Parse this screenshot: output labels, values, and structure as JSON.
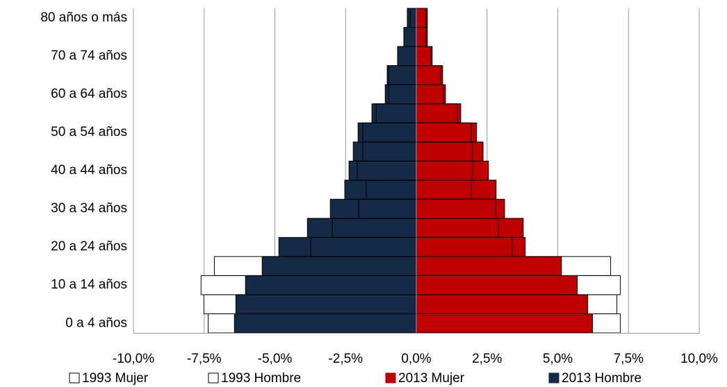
{
  "chart_data": {
    "type": "population-pyramid",
    "categories": [
      "0 a 4 años",
      null,
      "10 a 14 años",
      null,
      "20 a 24 años",
      null,
      "30 a 34 años",
      null,
      "40 a 44 años",
      null,
      "50 a 54 años",
      null,
      "60 a 64 años",
      null,
      "70 a 74 años",
      null,
      "80 años o más"
    ],
    "series": [
      {
        "name": "1993 Mujer",
        "color": "#ffffff",
        "values": [
          7.21,
          7.09,
          7.21,
          6.87,
          3.39,
          2.9,
          2.8,
          1.94,
          1.99,
          1.99,
          1.94,
          1.45,
          0.96,
          0.86,
          0.52,
          0.34,
          0.34
        ]
      },
      {
        "name": "1993 Hombre",
        "color": "#ffffff",
        "values": [
          -7.36,
          -7.51,
          -7.61,
          -7.14,
          -3.73,
          -2.97,
          -2.04,
          -1.77,
          -2.09,
          -1.89,
          -1.89,
          -1.42,
          -0.98,
          -0.98,
          -0.66,
          -0.44,
          -0.22
        ]
      },
      {
        "name": "2013 Mujer",
        "color": "#c00000",
        "values": [
          6.23,
          6.06,
          5.69,
          5.13,
          3.85,
          3.78,
          3.12,
          2.82,
          2.55,
          2.36,
          2.13,
          1.57,
          1.03,
          0.93,
          0.56,
          0.39,
          0.39
        ]
      },
      {
        "name": "2013 Hombre",
        "color": "#152a47",
        "values": [
          -6.43,
          -6.38,
          -6.04,
          -5.45,
          -4.86,
          -3.85,
          -3.04,
          -2.53,
          -2.38,
          -2.23,
          -2.06,
          -1.57,
          -1.1,
          -1.03,
          -0.66,
          -0.44,
          -0.32
        ]
      }
    ],
    "xlim": [
      -10,
      10
    ],
    "xticks": [
      {
        "value": -10,
        "label": "-10,0%"
      },
      {
        "value": -7.5,
        "label": "-7,5%"
      },
      {
        "value": -5,
        "label": "-5,0%"
      },
      {
        "value": -2.5,
        "label": "-2,5%"
      },
      {
        "value": 0,
        "label": "0,0%"
      },
      {
        "value": 2.5,
        "label": "2,5%"
      },
      {
        "value": 5,
        "label": "5,0%"
      },
      {
        "value": 7.5,
        "label": "7,5%"
      },
      {
        "value": 10,
        "label": "10,0%"
      }
    ],
    "grid": true,
    "legend": "bottom"
  }
}
